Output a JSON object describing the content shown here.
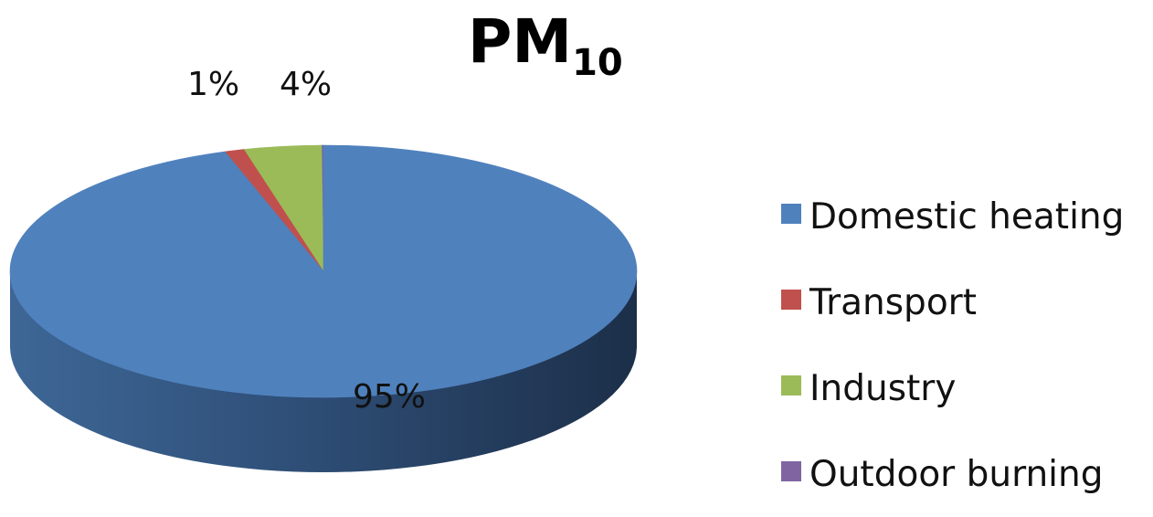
{
  "chart_data": {
    "type": "pie",
    "title_main": "PM",
    "title_sub": "10",
    "categories": [
      "Domestic heating",
      "Transport",
      "Industry",
      "Outdoor burning"
    ],
    "values": [
      95,
      1,
      4,
      0.1
    ],
    "data_labels": [
      "95%",
      "1%",
      "4%",
      ""
    ],
    "colors": [
      "#4F81BD",
      "#C0504D",
      "#9BBB59",
      "#8064A2"
    ],
    "legend_position": "right",
    "three_d": true
  }
}
